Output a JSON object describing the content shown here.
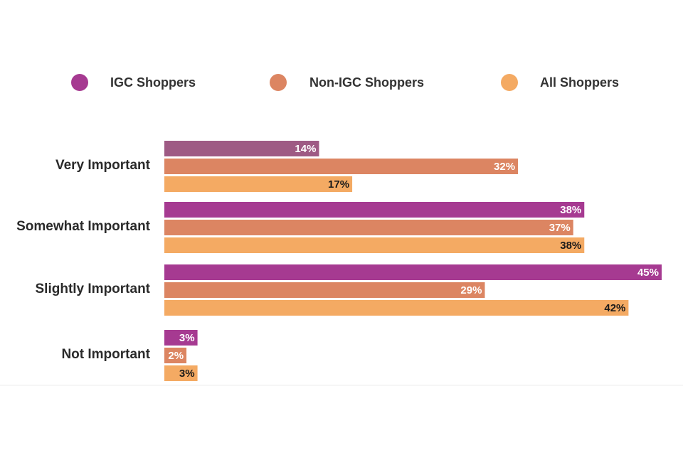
{
  "colors": {
    "igc": "#A63A91",
    "non_igc": "#DC8562",
    "all": "#F4AA63",
    "igc_very_important": "#9E5A84",
    "label_light": "#ffffff",
    "label_dark": "#1a1a1a"
  },
  "chart_data": {
    "type": "bar",
    "orientation": "horizontal",
    "categories": [
      "Very Important",
      "Somewhat Important",
      "Slightly Important",
      "Not Important"
    ],
    "series": [
      {
        "name": "IGC Shoppers",
        "key": "igc",
        "values": [
          14,
          38,
          45,
          3
        ],
        "labels": [
          "14%",
          "38%",
          "45%",
          "3%"
        ]
      },
      {
        "name": "Non-IGC Shoppers",
        "key": "non_igc",
        "values": [
          32,
          37,
          29,
          2
        ],
        "labels": [
          "32%",
          "37%",
          "29%",
          "2%"
        ]
      },
      {
        "name": "All Shoppers",
        "key": "all",
        "values": [
          17,
          38,
          42,
          3
        ],
        "labels": [
          "17%",
          "38%",
          "42%",
          "3%"
        ]
      }
    ],
    "xlim": [
      0,
      45
    ],
    "grid": false,
    "legend_position": "top"
  }
}
